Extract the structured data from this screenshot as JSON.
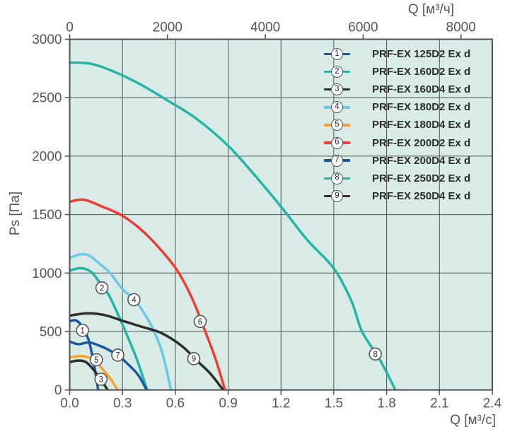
{
  "chart_data": {
    "type": "line",
    "x_axis_bottom": {
      "label": "Q [м³/с]",
      "min": 0,
      "max": 2.4,
      "ticks": [
        0,
        0.3,
        0.6,
        0.9,
        1.2,
        1.5,
        1.8,
        2.1,
        2.4
      ],
      "tick_labels": [
        "0.0",
        "0.3",
        "0.6",
        "0.9",
        "1.2",
        "1.5",
        "1.8",
        "2.1",
        "2.4"
      ]
    },
    "x_axis_top": {
      "label": "Q [м³/ч]",
      "min": 0,
      "max": 8640,
      "ticks": [
        0,
        2000,
        4000,
        6000,
        8000
      ]
    },
    "y_axis": {
      "label": "Ps [Па]",
      "min": 0,
      "max": 3000,
      "ticks": [
        0,
        500,
        1000,
        1500,
        2000,
        2500,
        3000
      ]
    },
    "grid": true,
    "legend_position": "top-right",
    "style": {
      "plot_background": "#d9ebe6",
      "grid_color": "#4f5254",
      "axis_text_color": "#54575c",
      "marker_circle_stroke": "#55565a",
      "marker_circle_fill": "#ffffff"
    },
    "series": [
      {
        "marker": "1",
        "name": "PRF-EX 125D2 Ex d",
        "color": "#1a57a3",
        "label_at": [
          0.073,
          510
        ],
        "points": [
          [
            0,
            585
          ],
          [
            0.03,
            597
          ],
          [
            0.06,
            565
          ],
          [
            0.085,
            495
          ],
          [
            0.105,
            440
          ],
          [
            0.125,
            320
          ],
          [
            0.145,
            160
          ],
          [
            0.162,
            0
          ]
        ]
      },
      {
        "marker": "2",
        "name": "PRF-EX 160D2 Ex d",
        "color": "#25b5a5",
        "label_at": [
          0.183,
          873
        ],
        "points": [
          [
            0,
            1020
          ],
          [
            0.06,
            1042
          ],
          [
            0.12,
            1012
          ],
          [
            0.17,
            920
          ],
          [
            0.22,
            818
          ],
          [
            0.27,
            660
          ],
          [
            0.32,
            488
          ],
          [
            0.38,
            268
          ],
          [
            0.44,
            0
          ]
        ]
      },
      {
        "marker": "3",
        "name": "PRF-EX 160D4 Ex d",
        "color": "#2d2d2d",
        "label_at": [
          0.178,
          92
        ],
        "points": [
          [
            0,
            238
          ],
          [
            0.05,
            252
          ],
          [
            0.09,
            240
          ],
          [
            0.12,
            200
          ],
          [
            0.155,
            135
          ],
          [
            0.19,
            58
          ],
          [
            0.216,
            0
          ]
        ]
      },
      {
        "marker": "4",
        "name": "PRF-EX 180D2 Ex d",
        "color": "#6cc7ea",
        "label_at": [
          0.365,
          772
        ],
        "points": [
          [
            0,
            1130
          ],
          [
            0.06,
            1160
          ],
          [
            0.11,
            1150
          ],
          [
            0.17,
            1080
          ],
          [
            0.23,
            1000
          ],
          [
            0.3,
            862
          ],
          [
            0.37,
            768
          ],
          [
            0.43,
            640
          ],
          [
            0.48,
            500
          ],
          [
            0.53,
            298
          ],
          [
            0.575,
            0
          ]
        ]
      },
      {
        "marker": "5",
        "name": "PRF-EX 180D4 Ex d",
        "color": "#f8a22b",
        "label_at": [
          0.152,
          258
        ],
        "points": [
          [
            0,
            276
          ],
          [
            0.06,
            291
          ],
          [
            0.11,
            276
          ],
          [
            0.15,
            236
          ],
          [
            0.2,
            156
          ],
          [
            0.24,
            78
          ],
          [
            0.272,
            0
          ]
        ]
      },
      {
        "marker": "6",
        "name": "PRF-EX 200D2 Ex d",
        "color": "#ef3b33",
        "label_at": [
          0.741,
          586
        ],
        "points": [
          [
            0,
            1610
          ],
          [
            0.08,
            1628
          ],
          [
            0.18,
            1572
          ],
          [
            0.3,
            1490
          ],
          [
            0.42,
            1352
          ],
          [
            0.54,
            1160
          ],
          [
            0.62,
            1000
          ],
          [
            0.7,
            768
          ],
          [
            0.77,
            500
          ],
          [
            0.83,
            258
          ],
          [
            0.882,
            0
          ]
        ]
      },
      {
        "marker": "7",
        "name": "PRF-EX 200D4 Ex d",
        "color": "#1a57a3",
        "label_at": [
          0.273,
          298
        ],
        "points": [
          [
            0,
            415
          ],
          [
            0.05,
            391
          ],
          [
            0.11,
            407
          ],
          [
            0.17,
            378
          ],
          [
            0.22,
            344
          ],
          [
            0.28,
            290
          ],
          [
            0.33,
            222
          ],
          [
            0.39,
            126
          ],
          [
            0.437,
            0
          ]
        ]
      },
      {
        "marker": "8",
        "name": "PRF-EX 250D2 Ex d",
        "color": "#25b5a5",
        "label_at": [
          1.736,
          308
        ],
        "points": [
          [
            0,
            2800
          ],
          [
            0.12,
            2790
          ],
          [
            0.25,
            2724
          ],
          [
            0.4,
            2615
          ],
          [
            0.55,
            2482
          ],
          [
            0.72,
            2320
          ],
          [
            0.9,
            2088
          ],
          [
            1.05,
            1838
          ],
          [
            1.2,
            1568
          ],
          [
            1.35,
            1282
          ],
          [
            1.5,
            1040
          ],
          [
            1.6,
            762
          ],
          [
            1.66,
            500
          ],
          [
            1.76,
            262
          ],
          [
            1.85,
            0
          ]
        ]
      },
      {
        "marker": "9",
        "name": "PRF-EX 250D4 Ex d",
        "color": "#2d2d2d",
        "label_at": [
          0.705,
          268
        ],
        "points": [
          [
            0,
            636
          ],
          [
            0.1,
            656
          ],
          [
            0.2,
            640
          ],
          [
            0.3,
            592
          ],
          [
            0.4,
            545
          ],
          [
            0.5,
            500
          ],
          [
            0.57,
            446
          ],
          [
            0.65,
            360
          ],
          [
            0.73,
            240
          ],
          [
            0.8,
            138
          ],
          [
            0.872,
            0
          ]
        ]
      }
    ]
  }
}
